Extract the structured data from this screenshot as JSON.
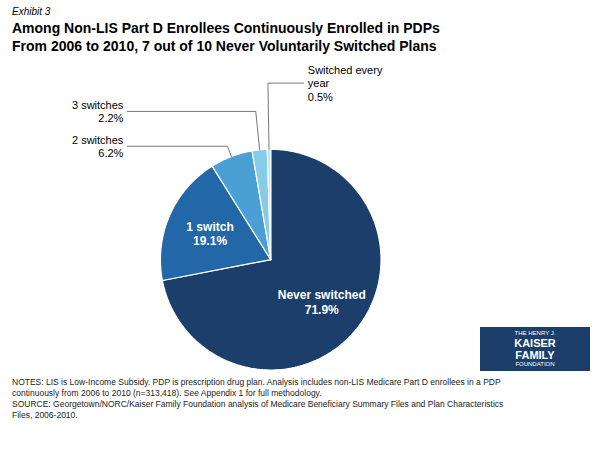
{
  "chart_data": {
    "type": "pie",
    "exhibit": "Exhibit 3",
    "title": "Among Non-LIS Part D Enrollees Continuously Enrolled in PDPs\nFrom 2006 to 2010, 7 out of 10 Never Voluntarily Switched Plans",
    "categories": [
      "Never switched",
      "1 switch",
      "2 switches",
      "3 switches",
      "Switched every\nyear"
    ],
    "values": [
      71.9,
      19.1,
      6.2,
      2.2,
      0.5
    ],
    "value_labels": [
      "71.9%",
      "19.1%",
      "6.2%",
      "2.2%",
      "0.5%"
    ],
    "colors": [
      "#1b3f6a",
      "#2267a8",
      "#4a9fd4",
      "#85cce8",
      "#b8e4f4"
    ],
    "data_labels": true,
    "notes": [
      "NOTES: LIS is Low-Income Subsidy. PDP is prescription drug plan. Analysis includes non-LIS Medicare Part D enrollees in a PDP",
      "continuously from 2006 to 2010 (n=313,418). See Appendix 1 for full methodology.",
      "SOURCE: Georgetown/NORC/Kaiser Family Foundation analysis of Medicare Beneficiary Summary Files and Plan Characteristics",
      "Files, 2006-2010."
    ],
    "logo": [
      "THE HENRY J.",
      "KAISER",
      "FAMILY",
      "FOUNDATION"
    ]
  }
}
